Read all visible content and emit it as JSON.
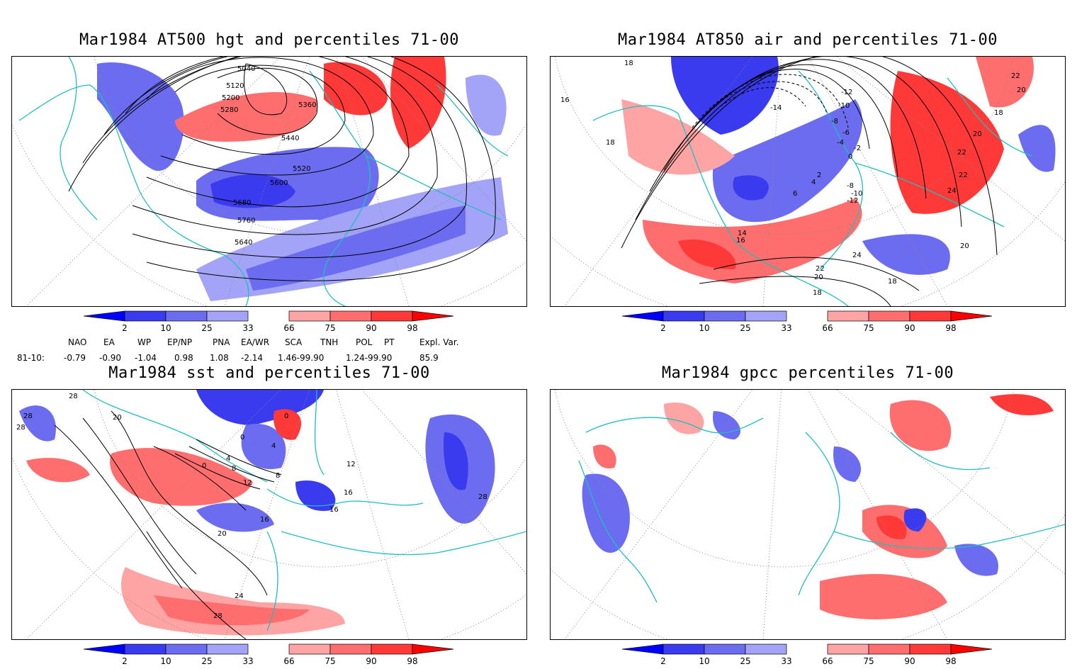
{
  "panels": [
    {
      "title": "Mar1984 AT500 hgt and percentiles 71-00",
      "contour_labels": [
        "5040",
        "5120",
        "5200",
        "5280",
        "5360",
        "5440",
        "5520",
        "5600",
        "5680",
        "5760",
        "5640"
      ]
    },
    {
      "title": "Mar1984 AT850 air and percentiles 71-00",
      "contour_labels": [
        "18",
        "16",
        "18",
        "-12",
        "-10",
        "-8",
        "-6",
        "-4",
        "-2",
        "0",
        "2",
        "4",
        "6",
        "-8",
        "-10",
        "-12",
        "14",
        "16",
        "22",
        "20",
        "18",
        "20",
        "22",
        "22",
        "24",
        "20",
        "24",
        "22",
        "20",
        "18",
        "18",
        "-14"
      ]
    },
    {
      "title": "Mar1984 sst and percentiles 71-00",
      "contour_labels": [
        "28",
        "28",
        "28",
        "20",
        "0",
        "0",
        "4",
        "4",
        "0",
        "8",
        "12",
        "8",
        "16",
        "16",
        "16",
        "20",
        "24",
        "28",
        "28",
        "12"
      ]
    },
    {
      "title": "Mar1984 gpcc percentiles 71-00",
      "contour_labels": []
    }
  ],
  "colorbar": {
    "ticks": [
      "2",
      "10",
      "25",
      "33",
      "66",
      "75",
      "90",
      "98"
    ],
    "colors": {
      "b1": "#0000ff",
      "b2": "#3a3aef",
      "b3": "#6c6cf0",
      "b4": "#a3a3f7",
      "r1": "#ffa4a4",
      "r2": "#ff6e6e",
      "r3": "#ff3838",
      "r4": "#ff0000"
    }
  },
  "indices": {
    "headers": [
      "NAO",
      "EA",
      "WP",
      "EP/NP",
      "PNA",
      "EA/WR",
      "SCA",
      "TNH",
      "POL",
      "PT",
      "Expl. Var."
    ],
    "row_label": "81-10:",
    "values": [
      "-0.79",
      "-0.90",
      "-1.04",
      "0.98",
      "1.08",
      "-2.14",
      "1.46-99.90",
      "1.24-99.90",
      "85.9"
    ]
  },
  "colors": {
    "coast": "#1fbfbf",
    "grid": "#888888",
    "contour": "#000000"
  }
}
